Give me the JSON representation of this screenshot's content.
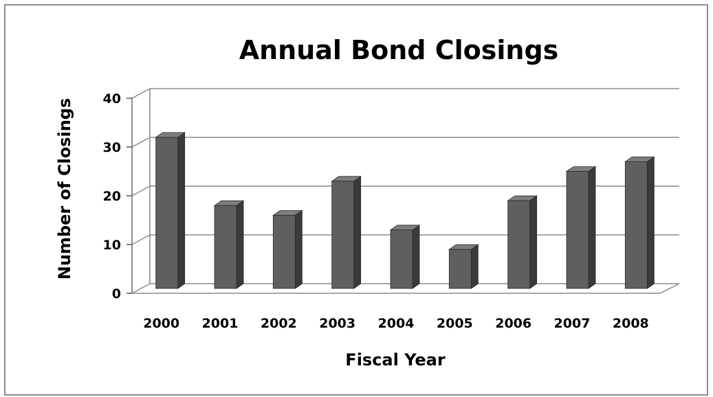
{
  "chart_data": {
    "type": "bar",
    "title": "Annual Bond Closings",
    "xlabel": "Fiscal Year",
    "ylabel": "Number of Closings",
    "categories": [
      "2000",
      "2001",
      "2002",
      "2003",
      "2004",
      "2005",
      "2006",
      "2007",
      "2008"
    ],
    "values": [
      31,
      17,
      15,
      22,
      12,
      8,
      18,
      24,
      26
    ],
    "ylim": [
      0,
      40
    ],
    "yticks": [
      "0",
      "10",
      "20",
      "30",
      "40"
    ],
    "grid": true,
    "legend": "none",
    "style": "3d-column",
    "colors": {
      "bar_front": "#5f5f5f",
      "bar_side": "#3a3a3a",
      "bar_top": "#7d7d7d",
      "grid": "#8a8a8a"
    }
  }
}
